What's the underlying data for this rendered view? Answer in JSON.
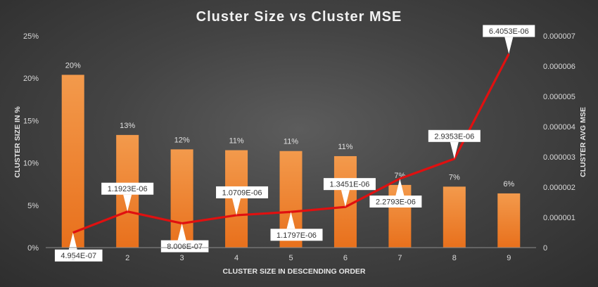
{
  "chart_data": {
    "type": "bar",
    "title": "Cluster Size vs Cluster MSE",
    "xlabel": "CLUSTER SIZE IN DESCENDING ORDER",
    "ylabel_left": "CLUSTER SIZE IN %",
    "ylabel_right": "CLUSTER AVG MSE",
    "categories": [
      "1",
      "2",
      "3",
      "4",
      "5",
      "6",
      "7",
      "8",
      "9"
    ],
    "series": [
      {
        "type": "bar",
        "axis": "left",
        "values": [
          20.4,
          13.3,
          11.6,
          11.5,
          11.4,
          10.8,
          7.4,
          7.2,
          6.4
        ],
        "labels": [
          "20%",
          "13%",
          "12%",
          "11%",
          "11%",
          "11%",
          "7%",
          "7%",
          "6%"
        ],
        "color": "#ef7a22"
      },
      {
        "type": "line",
        "axis": "right",
        "values": [
          4.954e-07,
          1.1923e-06,
          8.006e-07,
          1.0709e-06,
          1.1797e-06,
          1.3451e-06,
          2.2793e-06,
          2.9353e-06,
          6.4053e-06
        ],
        "labels": [
          "4.954E-07",
          "1.1923E-06",
          "8.006E-07",
          "1.0709E-06",
          "1.1797E-06",
          "1.3451E-06",
          "2.2793E-06",
          "2.9353E-06",
          "6.4053E-06"
        ],
        "color": "#e01010"
      }
    ],
    "ylim_left": [
      0,
      25
    ],
    "yticks_left": [
      "0%",
      "5%",
      "10%",
      "15%",
      "20%",
      "25%"
    ],
    "ylim_right": [
      0,
      7e-06
    ],
    "yticks_right": [
      "0",
      "0.000001",
      "0.000002",
      "0.000003",
      "0.000004",
      "0.000005",
      "0.000006",
      "0.000007"
    ],
    "grid": false,
    "legend": "none"
  }
}
